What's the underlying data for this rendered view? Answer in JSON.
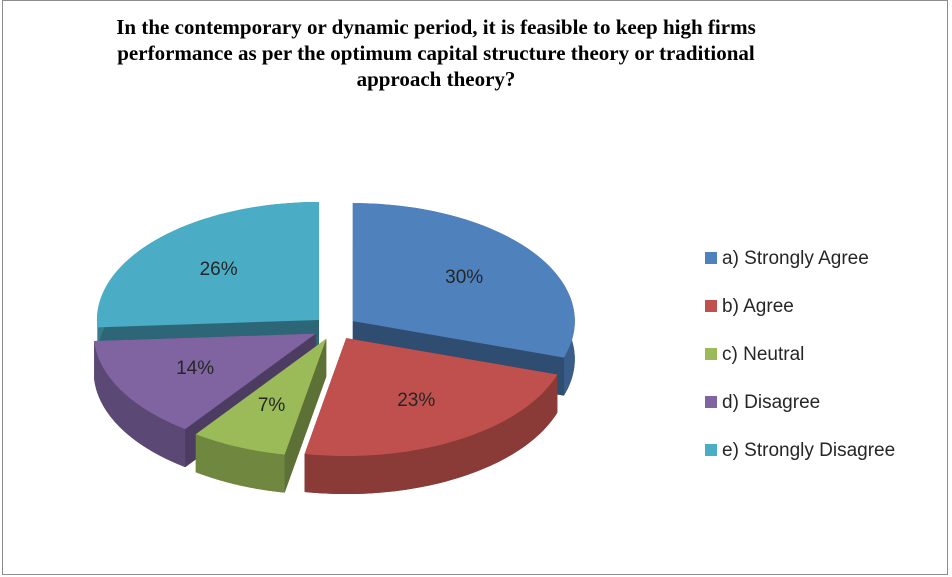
{
  "chart_data": {
    "type": "pie",
    "title": "In the contemporary or dynamic period, it is feasible to keep high firms performance as per the optimum capital structure theory or traditional approach theory?",
    "categories": [
      "a) Strongly Agree",
      "b) Agree",
      "c) Neutral",
      "d) Disagree",
      "e) Strongly Disagree"
    ],
    "values": [
      30,
      23,
      7,
      14,
      26
    ],
    "value_labels": [
      "30%",
      "23%",
      "7%",
      "14%",
      "26%"
    ],
    "colors": [
      "#4f81bd",
      "#c0504d",
      "#9bbb59",
      "#8064a2",
      "#4bacc6"
    ],
    "legend": "right"
  }
}
